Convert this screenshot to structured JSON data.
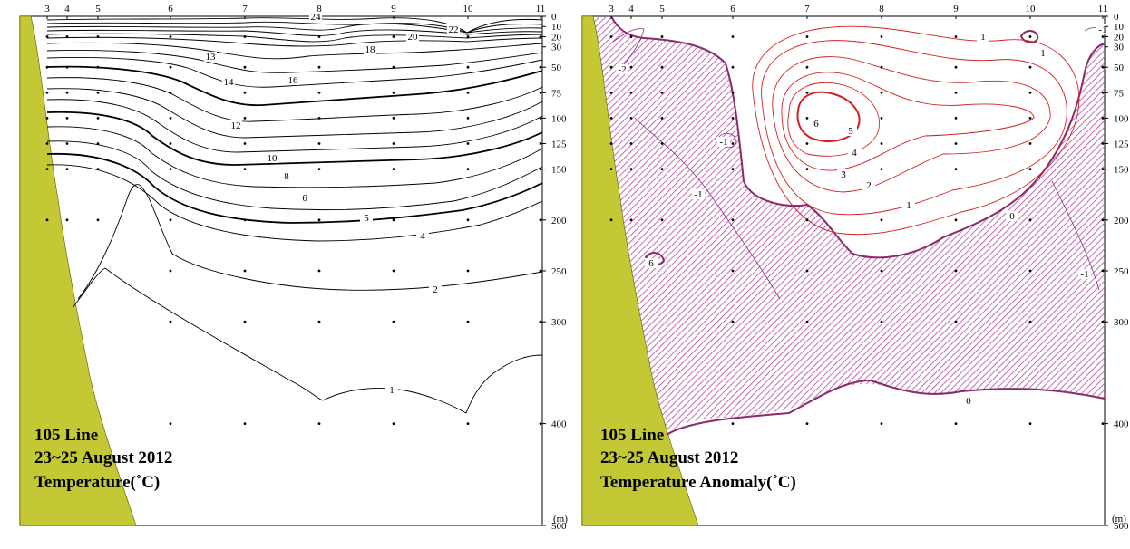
{
  "colors": {
    "land": "#c3c834",
    "temp_contour": "#000000",
    "anomaly_positive": "#cc0000",
    "anomaly_negative": "#8b2a8b",
    "hatch": "#b04aa0"
  },
  "chart_data": [
    {
      "type": "contour",
      "title_lines": [
        "105 Line",
        "23~25 August 2012",
        "Temperature(˚C)"
      ],
      "stations": [
        "3",
        "4",
        "5",
        "6",
        "7",
        "8",
        "9",
        "10",
        "11"
      ],
      "depth_ticks": [
        "0",
        "10",
        "20",
        "30",
        "50",
        "75",
        "100",
        "125",
        "150",
        "200",
        "250",
        "300",
        "400",
        "500"
      ],
      "depth_unit": "(m)",
      "ylim": [
        0,
        500
      ],
      "contour_labels": [
        "24",
        "22",
        "20",
        "18",
        "16",
        "14",
        "13",
        "12",
        "10",
        "8",
        "6",
        "5",
        "4",
        "2",
        "1"
      ]
    },
    {
      "type": "contour",
      "title_lines": [
        "105 Line",
        "23~25 August 2012",
        "Temperature Anomaly(˚C)"
      ],
      "stations": [
        "3",
        "4",
        "5",
        "6",
        "7",
        "8",
        "9",
        "10",
        "11"
      ],
      "depth_ticks": [
        "0",
        "10",
        "20",
        "30",
        "50",
        "75",
        "100",
        "125",
        "150",
        "200",
        "250",
        "300",
        "400",
        "500"
      ],
      "depth_unit": "(m)",
      "ylim": [
        0,
        500
      ],
      "contour_labels": [
        "6",
        "5",
        "4",
        "3",
        "2",
        "1",
        "0",
        "-1",
        "-1",
        "1",
        "1",
        "-2",
        "-1",
        "0",
        "6",
        "-1"
      ],
      "hatched_region": "negative anomaly"
    }
  ]
}
